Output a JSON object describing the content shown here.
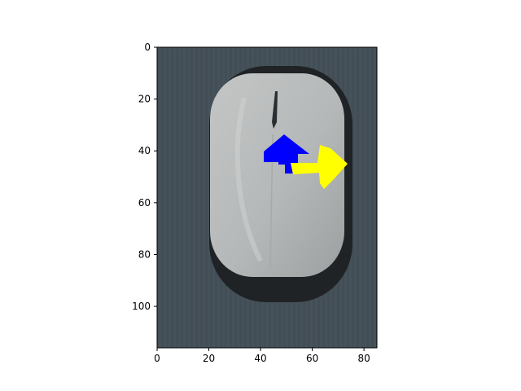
{
  "image_panel": {
    "description_tags": [
      "computer-mouse",
      "blue-arrow",
      "yellow-arrow"
    ],
    "x_ticks": [
      "0",
      "20",
      "40",
      "60",
      "80"
    ],
    "y_ticks": [
      "0",
      "20",
      "40",
      "60",
      "80",
      "100"
    ],
    "x_range": [
      0,
      85
    ],
    "y_range": [
      0,
      116
    ],
    "grid": false,
    "colors": {
      "background_surface": "#46525a",
      "mouse_body": "#b9bcbc",
      "mouse_shadow": "#1f2326",
      "blue_arrow": "#0000ff",
      "yellow_arrow": "#ffff00"
    },
    "arrows": [
      {
        "name": "blue-arrow",
        "direction": "up",
        "color": "#0000ff",
        "tail": [
          50,
          47
        ],
        "head": [
          50,
          34
        ]
      },
      {
        "name": "yellow-arrow",
        "direction": "right",
        "color": "#ffff00",
        "tail": [
          52,
          46
        ],
        "head": [
          73,
          45
        ]
      }
    ]
  }
}
